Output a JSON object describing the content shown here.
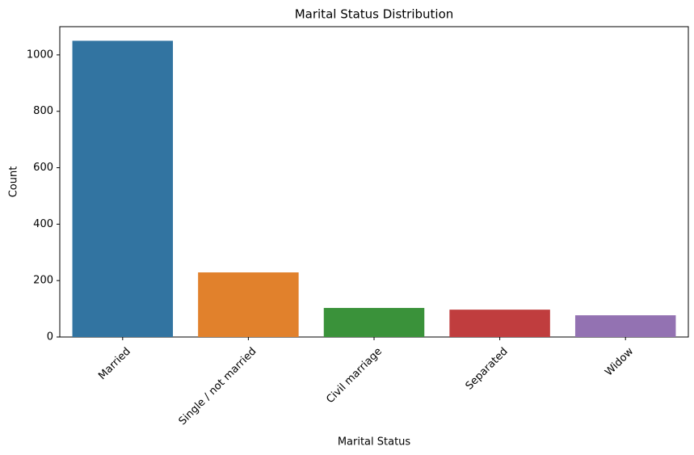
{
  "chart_data": {
    "type": "bar",
    "title": "Marital Status Distribution",
    "x_label": "Marital Status",
    "y_label": "Count",
    "categories": [
      "Married",
      "Single / not married",
      "Civil marriage",
      "Separated",
      "Widow"
    ],
    "values": [
      1050,
      229,
      103,
      97,
      77
    ],
    "colors": [
      "#3274a1",
      "#e1812c",
      "#3a923a",
      "#c03d3e",
      "#9372b2"
    ],
    "ylim": [
      0,
      1100
    ],
    "yticks": [
      0,
      200,
      400,
      600,
      800,
      1000
    ],
    "grid": false
  }
}
